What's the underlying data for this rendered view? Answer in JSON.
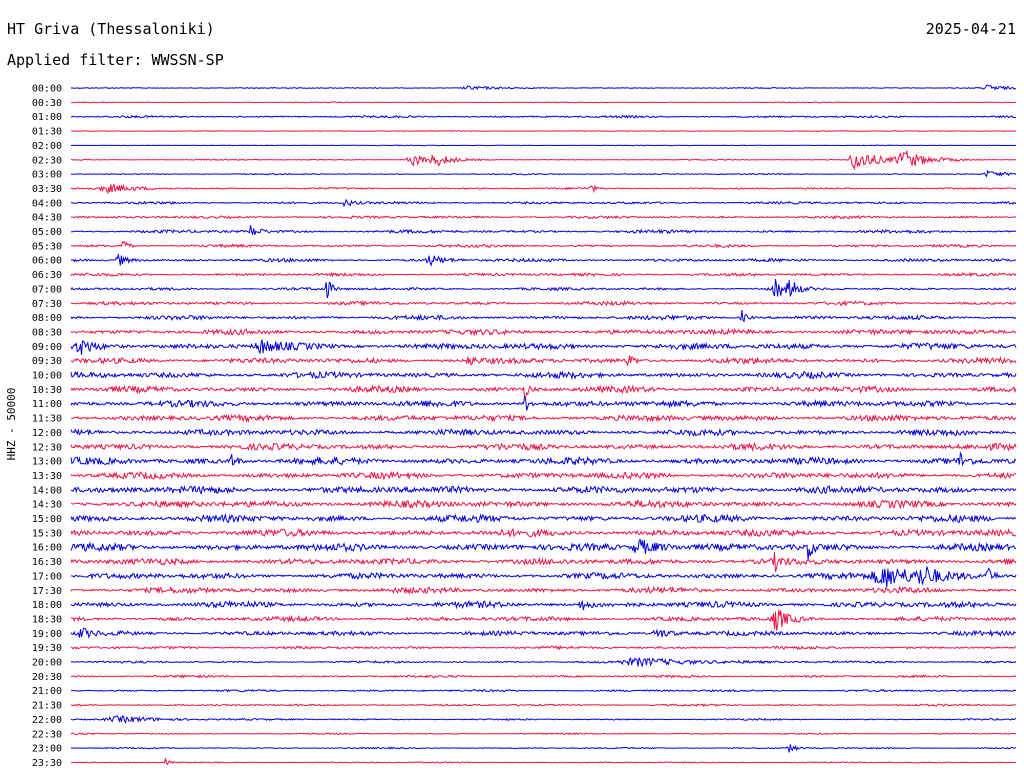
{
  "header": {
    "station": "HT Griva (Thessaloniki)",
    "date": "2025-04-21",
    "filter_text": "Applied filter: WWSSN-SP"
  },
  "chart_data": {
    "type": "line",
    "title": "HT Griva (Thessaloniki)",
    "ylabel": "HHZ - 50000",
    "xlabel": "",
    "series_colors": [
      "#0000dd",
      "#ee1144"
    ],
    "row_labels": [
      "00:00",
      "00:30",
      "01:00",
      "01:30",
      "02:00",
      "02:30",
      "03:00",
      "03:30",
      "04:00",
      "04:30",
      "05:00",
      "05:30",
      "06:00",
      "06:30",
      "07:00",
      "07:30",
      "08:00",
      "08:30",
      "09:00",
      "09:30",
      "10:00",
      "10:30",
      "11:00",
      "11:30",
      "12:00",
      "12:30",
      "13:00",
      "13:30",
      "14:00",
      "14:30",
      "15:00",
      "15:30",
      "16:00",
      "16:30",
      "17:00",
      "17:30",
      "18:00",
      "18:30",
      "19:00",
      "19:30",
      "20:00",
      "20:30",
      "21:00",
      "21:30",
      "22:00",
      "22:30",
      "23:00",
      "23:30"
    ],
    "noise_level": [
      0.6,
      0.5,
      1.2,
      0.4,
      0.4,
      0.6,
      0.7,
      1.0,
      1.4,
      1.5,
      1.8,
      1.6,
      1.8,
      1.7,
      1.6,
      2.0,
      2.4,
      3.0,
      3.6,
      3.2,
      3.4,
      3.4,
      3.6,
      3.5,
      3.5,
      3.6,
      4.0,
      3.6,
      4.2,
      4.0,
      4.0,
      4.0,
      4.2,
      3.6,
      3.4,
      3.2,
      3.4,
      2.6,
      2.6,
      1.6,
      1.2,
      1.3,
      1.2,
      1.1,
      0.9,
      0.8,
      0.8,
      0.7
    ],
    "events": [
      {
        "row": 0,
        "t": 0.42,
        "amp": 2,
        "dur": 0.03
      },
      {
        "row": 0,
        "t": 0.97,
        "amp": 3,
        "dur": 0.02
      },
      {
        "row": 5,
        "t": 0.36,
        "amp": 7,
        "dur": 0.02
      },
      {
        "row": 5,
        "t": 0.385,
        "amp": 6,
        "dur": 0.02
      },
      {
        "row": 5,
        "t": 0.83,
        "amp": 11,
        "dur": 0.03
      },
      {
        "row": 5,
        "t": 0.88,
        "amp": 9,
        "dur": 0.03
      },
      {
        "row": 6,
        "t": 0.97,
        "amp": 3,
        "dur": 0.02
      },
      {
        "row": 7,
        "t": 0.04,
        "amp": 4,
        "dur": 0.04
      },
      {
        "row": 7,
        "t": 0.55,
        "amp": 5,
        "dur": 0.005
      },
      {
        "row": 8,
        "t": 0.29,
        "amp": 4,
        "dur": 0.01
      },
      {
        "row": 10,
        "t": 0.19,
        "amp": 6,
        "dur": 0.01
      },
      {
        "row": 11,
        "t": 0.055,
        "amp": 8,
        "dur": 0.006
      },
      {
        "row": 12,
        "t": 0.05,
        "amp": 7,
        "dur": 0.01
      },
      {
        "row": 12,
        "t": 0.38,
        "amp": 5,
        "dur": 0.02
      },
      {
        "row": 14,
        "t": 0.27,
        "amp": 14,
        "dur": 0.006
      },
      {
        "row": 14,
        "t": 0.745,
        "amp": 12,
        "dur": 0.01
      },
      {
        "row": 14,
        "t": 0.76,
        "amp": 10,
        "dur": 0.01
      },
      {
        "row": 16,
        "t": 0.71,
        "amp": 7,
        "dur": 0.006
      },
      {
        "row": 18,
        "t": 0.01,
        "amp": 7,
        "dur": 0.02
      },
      {
        "row": 18,
        "t": 0.2,
        "amp": 7,
        "dur": 0.02
      },
      {
        "row": 19,
        "t": 0.59,
        "amp": 8,
        "dur": 0.006
      },
      {
        "row": 19,
        "t": 0.42,
        "amp": 7,
        "dur": 0.006
      },
      {
        "row": 21,
        "t": 0.48,
        "amp": 8,
        "dur": 0.006
      },
      {
        "row": 22,
        "t": 0.48,
        "amp": 10,
        "dur": 0.006
      },
      {
        "row": 26,
        "t": 0.17,
        "amp": 9,
        "dur": 0.006
      },
      {
        "row": 26,
        "t": 0.94,
        "amp": 9,
        "dur": 0.006
      },
      {
        "row": 32,
        "t": 0.78,
        "amp": 10,
        "dur": 0.006
      },
      {
        "row": 32,
        "t": 0.6,
        "amp": 8,
        "dur": 0.03
      },
      {
        "row": 33,
        "t": 0.745,
        "amp": 9,
        "dur": 0.006
      },
      {
        "row": 34,
        "t": 0.86,
        "amp": 11,
        "dur": 0.05
      },
      {
        "row": 34,
        "t": 0.9,
        "amp": 9,
        "dur": 0.02
      },
      {
        "row": 34,
        "t": 0.97,
        "amp": 7,
        "dur": 0.006
      },
      {
        "row": 36,
        "t": 0.54,
        "amp": 6,
        "dur": 0.01
      },
      {
        "row": 37,
        "t": 0.745,
        "amp": 12,
        "dur": 0.015
      },
      {
        "row": 38,
        "t": 0.01,
        "amp": 6,
        "dur": 0.01
      },
      {
        "row": 38,
        "t": 0.62,
        "amp": 5,
        "dur": 0.02
      },
      {
        "row": 40,
        "t": 0.6,
        "amp": 4,
        "dur": 0.08
      },
      {
        "row": 44,
        "t": 0.05,
        "amp": 3,
        "dur": 0.06
      },
      {
        "row": 46,
        "t": 0.76,
        "amp": 4,
        "dur": 0.01
      },
      {
        "row": 47,
        "t": 0.1,
        "amp": 5,
        "dur": 0.004
      }
    ]
  }
}
